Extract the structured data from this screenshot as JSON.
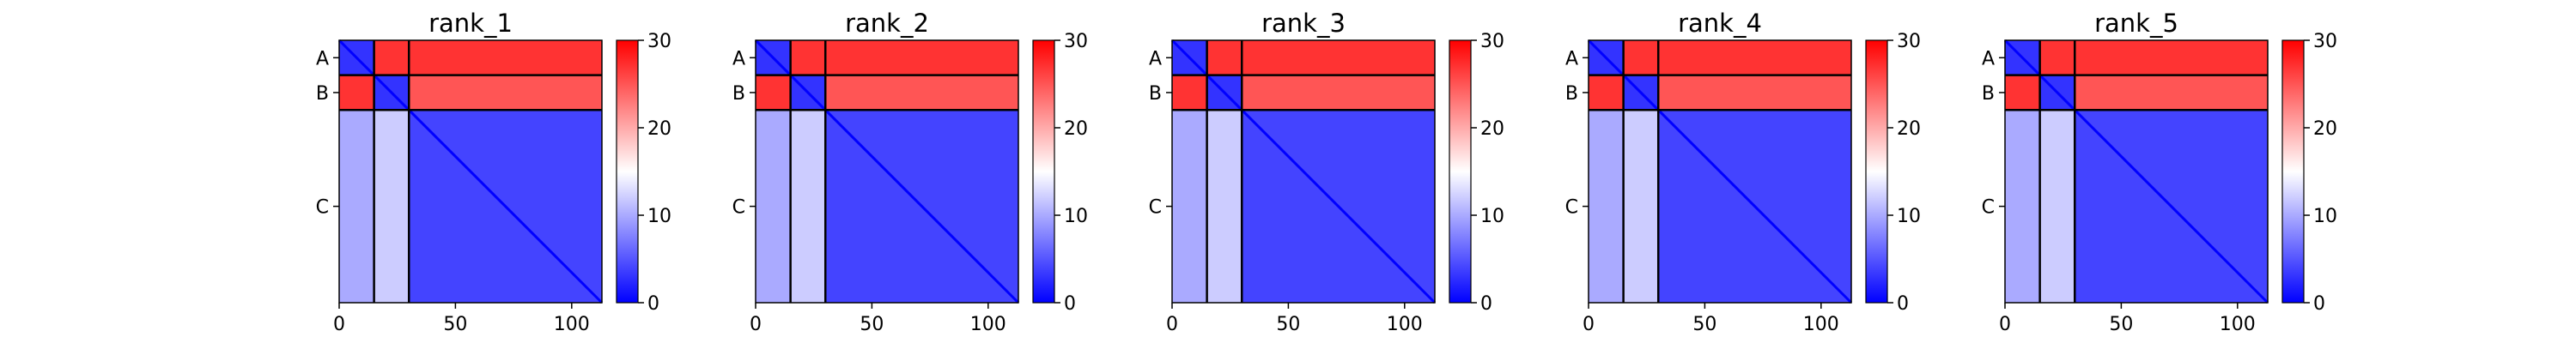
{
  "chart_data": {
    "type": "heatmap",
    "panels": [
      {
        "title": "rank_1"
      },
      {
        "title": "rank_2"
      },
      {
        "title": "rank_3"
      },
      {
        "title": "rank_4"
      },
      {
        "title": "rank_5"
      }
    ],
    "chains": [
      {
        "label": "A",
        "start": 0,
        "end": 15
      },
      {
        "label": "B",
        "start": 15,
        "end": 30
      },
      {
        "label": "C",
        "start": 30,
        "end": 113
      }
    ],
    "n_residues": 113,
    "x_ticks": [
      0,
      50,
      100
    ],
    "colorbar": {
      "vmin": 0,
      "vmax": 30,
      "ticks": [
        0,
        10,
        20,
        30
      ],
      "colors": [
        "#0000ff",
        "#ffffff",
        "#ff0000"
      ]
    },
    "cells": {
      "intra_chain_A": 3,
      "intra_chain_B": 3,
      "intra_chain_C": 4,
      "A_B": 27,
      "A_C": 27,
      "B_C": 25,
      "C_A": 10,
      "C_B": 12
    }
  }
}
